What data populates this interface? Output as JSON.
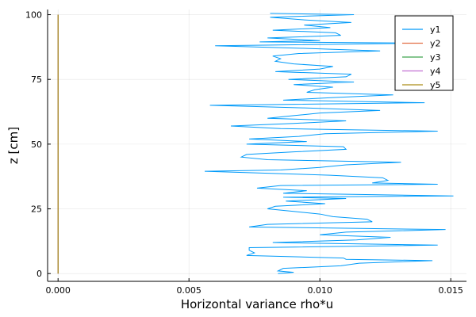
{
  "chart_data": {
    "type": "line",
    "title": "",
    "xlabel": "Horizontal variance rho*u",
    "ylabel": "z [cm]",
    "xlim": [
      -0.0004,
      0.0156
    ],
    "ylim": [
      -3,
      102
    ],
    "x_ticks": [
      0.0,
      0.005,
      0.01,
      0.015
    ],
    "x_tick_labels": [
      "0.000",
      "0.005",
      "0.010",
      "0.015"
    ],
    "y_ticks": [
      0,
      25,
      50,
      75,
      100
    ],
    "y_tick_labels": [
      "0",
      "25",
      "50",
      "75",
      "100"
    ],
    "grid": true,
    "legend_position": "top-right",
    "series": [
      {
        "name": "y1",
        "color": "#009af9",
        "points": [
          [
            0.0084,
            0
          ],
          [
            0.009,
            0.5
          ],
          [
            0.0084,
            1
          ],
          [
            0.0086,
            2
          ],
          [
            0.0108,
            3
          ],
          [
            0.0115,
            4
          ],
          [
            0.0143,
            5
          ],
          [
            0.011,
            5.5
          ],
          [
            0.0109,
            6
          ],
          [
            0.0072,
            7
          ],
          [
            0.0075,
            8
          ],
          [
            0.0073,
            9
          ],
          [
            0.0073,
            10
          ],
          [
            0.0145,
            11
          ],
          [
            0.0082,
            12
          ],
          [
            0.0114,
            13
          ],
          [
            0.0127,
            14
          ],
          [
            0.01,
            15
          ],
          [
            0.011,
            16
          ],
          [
            0.0148,
            17
          ],
          [
            0.0073,
            18
          ],
          [
            0.008,
            19
          ],
          [
            0.012,
            20
          ],
          [
            0.0118,
            21
          ],
          [
            0.0105,
            22
          ],
          [
            0.01,
            23
          ],
          [
            0.009,
            24
          ],
          [
            0.008,
            25
          ],
          [
            0.0083,
            26
          ],
          [
            0.0102,
            27
          ],
          [
            0.0087,
            28
          ],
          [
            0.011,
            29
          ],
          [
            0.0086,
            29.5
          ],
          [
            0.0151,
            30
          ],
          [
            0.0086,
            31
          ],
          [
            0.0095,
            32
          ],
          [
            0.0076,
            33
          ],
          [
            0.0085,
            34
          ],
          [
            0.0145,
            34.5
          ],
          [
            0.012,
            35
          ],
          [
            0.0126,
            36
          ],
          [
            0.0124,
            37
          ],
          [
            0.0104,
            38
          ],
          [
            0.0056,
            39.5
          ],
          [
            0.0085,
            40
          ],
          [
            0.01,
            41
          ],
          [
            0.011,
            42
          ],
          [
            0.0131,
            43
          ],
          [
            0.008,
            44
          ],
          [
            0.007,
            45
          ],
          [
            0.0072,
            46
          ],
          [
            0.009,
            47
          ],
          [
            0.011,
            48
          ],
          [
            0.0109,
            49
          ],
          [
            0.0072,
            50
          ],
          [
            0.0095,
            51
          ],
          [
            0.0073,
            52
          ],
          [
            0.0092,
            53
          ],
          [
            0.0102,
            54
          ],
          [
            0.0145,
            55
          ],
          [
            0.0085,
            56
          ],
          [
            0.0066,
            57
          ],
          [
            0.009,
            58
          ],
          [
            0.011,
            59
          ],
          [
            0.008,
            60
          ],
          [
            0.009,
            61
          ],
          [
            0.01,
            62
          ],
          [
            0.0123,
            63
          ],
          [
            0.0094,
            64
          ],
          [
            0.0058,
            65
          ],
          [
            0.014,
            66
          ],
          [
            0.0086,
            67
          ],
          [
            0.0105,
            68
          ],
          [
            0.0128,
            69
          ],
          [
            0.0095,
            70
          ],
          [
            0.0098,
            71
          ],
          [
            0.0105,
            72
          ],
          [
            0.009,
            73
          ],
          [
            0.0113,
            74
          ],
          [
            0.0088,
            75
          ],
          [
            0.011,
            76
          ],
          [
            0.0112,
            77
          ],
          [
            0.0083,
            78
          ],
          [
            0.01,
            79
          ],
          [
            0.0105,
            80
          ],
          [
            0.009,
            81
          ],
          [
            0.0083,
            82
          ],
          [
            0.0085,
            83
          ],
          [
            0.0082,
            84
          ],
          [
            0.0092,
            85
          ],
          [
            0.0123,
            86
          ],
          [
            0.0094,
            87
          ],
          [
            0.006,
            88
          ],
          [
            0.014,
            89
          ],
          [
            0.0077,
            89.5
          ],
          [
            0.01,
            90
          ],
          [
            0.008,
            91
          ],
          [
            0.0108,
            92
          ],
          [
            0.0106,
            93
          ],
          [
            0.0082,
            94
          ],
          [
            0.0104,
            95
          ],
          [
            0.0094,
            96
          ],
          [
            0.0112,
            97
          ],
          [
            0.0094,
            98
          ],
          [
            0.0081,
            99
          ],
          [
            0.0113,
            100
          ],
          [
            0.0081,
            100.5
          ]
        ]
      },
      {
        "name": "y2",
        "color": "#e26f46",
        "points": [
          [
            0,
            0
          ],
          [
            0,
            100
          ]
        ]
      },
      {
        "name": "y3",
        "color": "#3da44d",
        "points": [
          [
            0,
            0
          ],
          [
            0,
            100
          ]
        ]
      },
      {
        "name": "y4",
        "color": "#c271d2",
        "points": [
          [
            0,
            0
          ],
          [
            0,
            100
          ]
        ]
      },
      {
        "name": "y5",
        "color": "#ac8d18",
        "points": [
          [
            0,
            0
          ],
          [
            0,
            100
          ]
        ]
      }
    ]
  }
}
